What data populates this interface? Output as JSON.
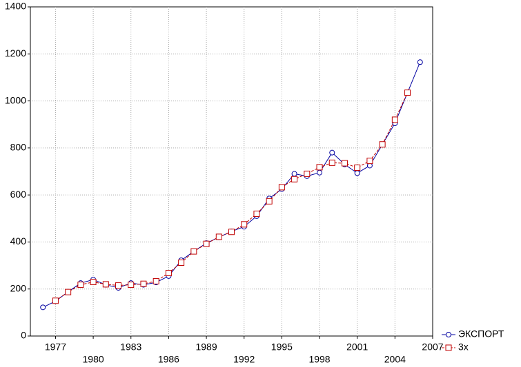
{
  "chart_data": {
    "type": "line",
    "x": [
      1976,
      1977,
      1978,
      1979,
      1980,
      1981,
      1982,
      1983,
      1984,
      1985,
      1986,
      1987,
      1988,
      1989,
      1990,
      1991,
      1992,
      1993,
      1994,
      1995,
      1996,
      1997,
      1998,
      1999,
      2000,
      2001,
      2002,
      2003,
      2004,
      2005,
      2006
    ],
    "series": [
      {
        "name": "ЭКСПОРТ",
        "color": "#0000a0",
        "marker": "circle",
        "values": [
          122,
          148,
          188,
          225,
          240,
          218,
          205,
          225,
          218,
          228,
          255,
          322,
          360,
          395,
          420,
          445,
          465,
          510,
          585,
          625,
          690,
          680,
          695,
          780,
          730,
          693,
          725,
          815,
          905,
          1035,
          1165
        ]
      },
      {
        "name": "3х",
        "color": "#c00000",
        "marker": "square",
        "dashed": true,
        "values": [
          null,
          150,
          187,
          218,
          230,
          220,
          215,
          218,
          222,
          233,
          268,
          312,
          360,
          392,
          422,
          443,
          475,
          520,
          573,
          633,
          667,
          690,
          718,
          737,
          735,
          716,
          745,
          815,
          920,
          1035,
          null
        ]
      }
    ],
    "xlim": [
      1975,
      2007
    ],
    "xticks": [
      1977,
      1980,
      1983,
      1986,
      1989,
      1992,
      1995,
      1998,
      2001,
      2004,
      2007
    ],
    "ylim": [
      0,
      1400
    ],
    "yticks": [
      0,
      200,
      400,
      600,
      800,
      1000,
      1200,
      1400
    ],
    "grid": true,
    "legend": "bottom-right"
  }
}
